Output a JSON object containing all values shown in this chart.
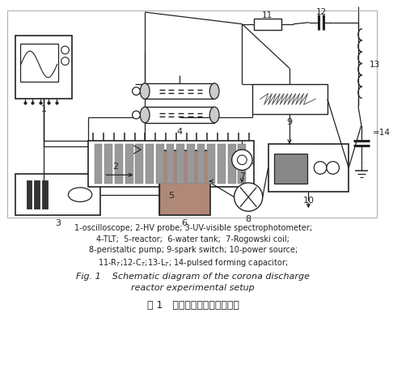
{
  "title_en_line1": "Fig. 1    Schematic diagram of the corona discharge",
  "title_en_line2": "reactor experimental setup",
  "title_cn": "图 1   电晕放电试验装置示意图",
  "caption_line1": "1-oscilloscope; 2-HV probe; 3-UV-visible spectrophotometer;",
  "caption_line2": "4-TLT;  5-reactor;  6-water tank;  7-Rogowski coil;",
  "caption_line3": "8-peristaltic pump; 9-spark switch; 10-power source;",
  "caption_line4": "11-R$_T$;12-C$_T$;13-L$_T$; 14-pulsed forming capacitor;",
  "bg_color": "#ffffff",
  "lc": "#222222"
}
